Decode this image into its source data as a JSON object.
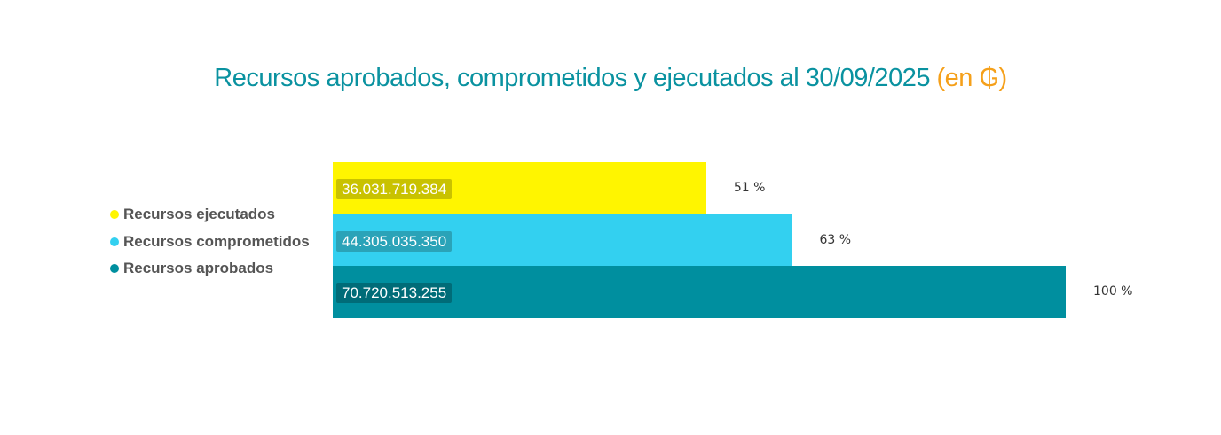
{
  "chart_data": {
    "type": "bar",
    "orientation": "horizontal",
    "title": "Recursos aprobados, comprometidos y ejecutados al 30/09/2025",
    "title_unit": "(en ₲)",
    "xlim": [
      0,
      70720513255
    ],
    "legend_position": "left",
    "series": [
      {
        "name": "Recursos ejecutados",
        "value": 36031719384,
        "label": "36.031.719.384",
        "percent": "51 %",
        "color": "#fff500",
        "label_bg": "#c9c200"
      },
      {
        "name": "Recursos comprometidos",
        "value": 44305035350,
        "label": "44.305.035.350",
        "percent": "63 %",
        "color": "#33d0f0",
        "label_bg": "#2aa3b8"
      },
      {
        "name": "Recursos aprobados",
        "value": 70720513255,
        "label": "70.720.513.255",
        "percent": "100 %",
        "color": "#008f9f",
        "label_bg": "#006c78"
      }
    ]
  }
}
